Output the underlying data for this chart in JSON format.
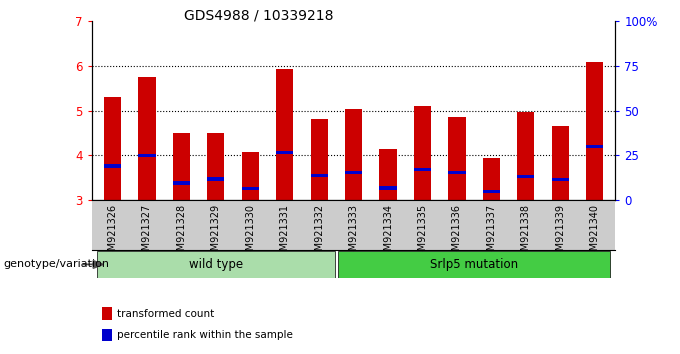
{
  "title": "GDS4988 / 10339218",
  "samples": [
    "GSM921326",
    "GSM921327",
    "GSM921328",
    "GSM921329",
    "GSM921330",
    "GSM921331",
    "GSM921332",
    "GSM921333",
    "GSM921334",
    "GSM921335",
    "GSM921336",
    "GSM921337",
    "GSM921338",
    "GSM921339",
    "GSM921340"
  ],
  "transformed_count": [
    5.3,
    5.75,
    4.5,
    4.5,
    4.08,
    5.93,
    4.82,
    5.04,
    4.15,
    5.1,
    4.85,
    3.93,
    4.98,
    4.65,
    6.08
  ],
  "percentile_rank": [
    3.76,
    4.0,
    3.38,
    3.47,
    3.25,
    4.07,
    3.55,
    3.62,
    3.27,
    3.68,
    3.62,
    3.2,
    3.53,
    3.46,
    4.2
  ],
  "ylim": [
    3,
    7
  ],
  "right_ylim": [
    0,
    100
  ],
  "right_yticks": [
    0,
    25,
    50,
    75,
    100
  ],
  "right_yticklabels": [
    "0",
    "25",
    "50",
    "75",
    "100%"
  ],
  "left_yticks": [
    3,
    4,
    5,
    6,
    7
  ],
  "bar_color": "#cc0000",
  "percentile_color": "#0000cc",
  "grid_color": "#000000",
  "wild_type_label": "wild type",
  "mutation_label": "Srlp5 mutation",
  "group_color_wt": "#aaddaa",
  "group_color_mut": "#44cc44",
  "xlabel": "genotype/variation",
  "legend_tc": "transformed count",
  "legend_pr": "percentile rank within the sample",
  "title_fontsize": 10,
  "tick_fontsize": 7,
  "bar_width": 0.5,
  "grey_bg": "#cccccc"
}
